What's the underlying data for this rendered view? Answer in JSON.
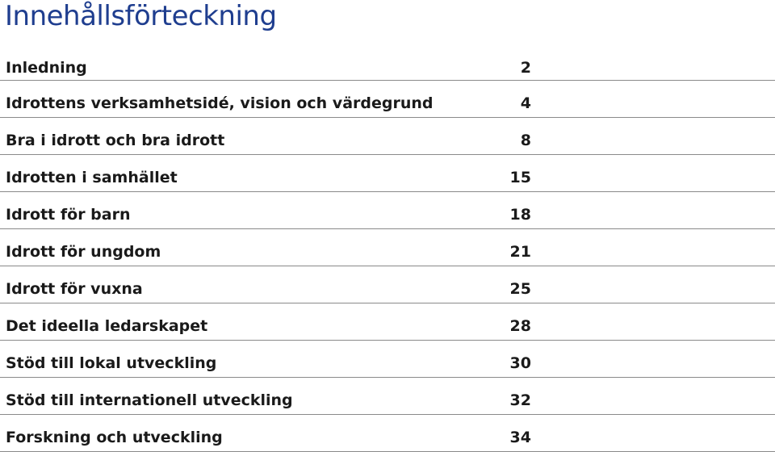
{
  "title": "Innehållsförteckning",
  "entries": [
    {
      "label": "Inledning",
      "page": "2"
    },
    {
      "label": "Idrottens verksamhetsidé, vision och värdegrund",
      "page": "4"
    },
    {
      "label": "Bra i idrott och bra idrott",
      "page": "8"
    },
    {
      "label": "Idrotten i samhället",
      "page": "15"
    },
    {
      "label": "Idrott för barn",
      "page": "18"
    },
    {
      "label": "Idrott för ungdom",
      "page": "21"
    },
    {
      "label": "Idrott för vuxna",
      "page": "25"
    },
    {
      "label": "Det ideella ledarskapet",
      "page": "28"
    },
    {
      "label": "Stöd till lokal utveckling",
      "page": "30"
    },
    {
      "label": "Stöd till internationell utveckling",
      "page": "32"
    },
    {
      "label": "Forskning och utveckling",
      "page": "34"
    }
  ],
  "colors": {
    "title": "#1f3e8f",
    "text": "#1a1a1a",
    "rule": "#8a8a8a"
  }
}
